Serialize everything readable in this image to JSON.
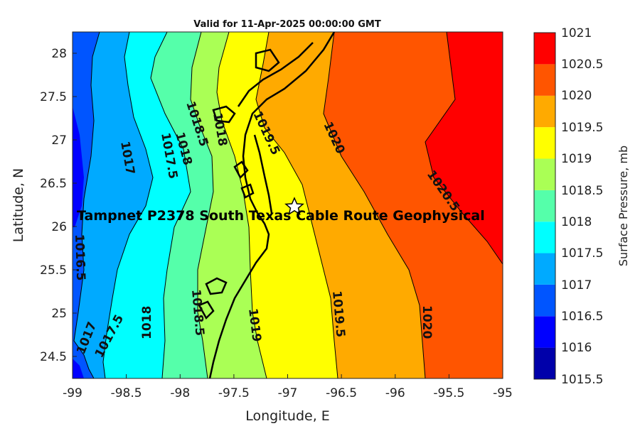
{
  "title": "Valid for 11-Apr-2025 00:00:00 GMT",
  "xlabel": "Longitude, E",
  "ylabel": "Latitude, N",
  "colorbar_label": "Surface Pressure, mb",
  "site_label": "Tampnet P2378 South Texas Cable Route Geophysical",
  "site_marker": {
    "lon": -96.92,
    "lat": 26.25,
    "symbol": "star"
  },
  "xticks": [
    "-99",
    "-98.5",
    "-98",
    "-97.5",
    "-97",
    "-96.5",
    "-96",
    "-95.5",
    "-95"
  ],
  "yticks": [
    "24.5",
    "25",
    "25.5",
    "26",
    "26.5",
    "27",
    "27.5",
    "28"
  ],
  "colorbar": {
    "levels": [
      "1015.5",
      "1016",
      "1016.5",
      "1017",
      "1017.5",
      "1018",
      "1018.5",
      "1019",
      "1019.5",
      "1020",
      "1020.5",
      "1021"
    ],
    "colors": [
      "#0000aa",
      "#0000ff",
      "#0055ff",
      "#00aaff",
      "#00ffff",
      "#55ffaa",
      "#aaff55",
      "#ffff00",
      "#ffaa00",
      "#ff5500",
      "#ff0000",
      "#aa0000"
    ]
  },
  "chart_data": {
    "type": "contour",
    "variable": "Surface Pressure",
    "units": "mb",
    "xlim": [
      -99,
      -95
    ],
    "ylim": [
      24.25,
      28.25
    ],
    "contour_labels": [
      {
        "text": "1017",
        "lon": -98.55,
        "lat": 26.95
      },
      {
        "text": "1017.5",
        "lon": -98.15,
        "lat": 26.75
      },
      {
        "text": "1018",
        "lon": -97.98,
        "lat": 26.95
      },
      {
        "text": "1018.5",
        "lon": -97.82,
        "lat": 27.15
      },
      {
        "text": "1018",
        "lon": -97.62,
        "lat": 27.12
      },
      {
        "text": "1019.5",
        "lon": -97.12,
        "lat": 27.15
      },
      {
        "text": "1020",
        "lon": -96.55,
        "lat": 27.0
      },
      {
        "text": "1020.5",
        "lon": -95.5,
        "lat": 26.35
      },
      {
        "text": "1016.5",
        "lon": -98.92,
        "lat": 25.6
      },
      {
        "text": "1017",
        "lon": -98.87,
        "lat": 24.75
      },
      {
        "text": "1017.5",
        "lon": -98.65,
        "lat": 24.8
      },
      {
        "text": "1018",
        "lon": -98.22,
        "lat": 24.95
      },
      {
        "text": "1018.5",
        "lon": -97.8,
        "lat": 24.95
      },
      {
        "text": "1019",
        "lon": -97.27,
        "lat": 24.85
      },
      {
        "text": "1019.5",
        "lon": -96.53,
        "lat": 24.95
      },
      {
        "text": "1020",
        "lon": -95.7,
        "lat": 24.95
      }
    ]
  }
}
